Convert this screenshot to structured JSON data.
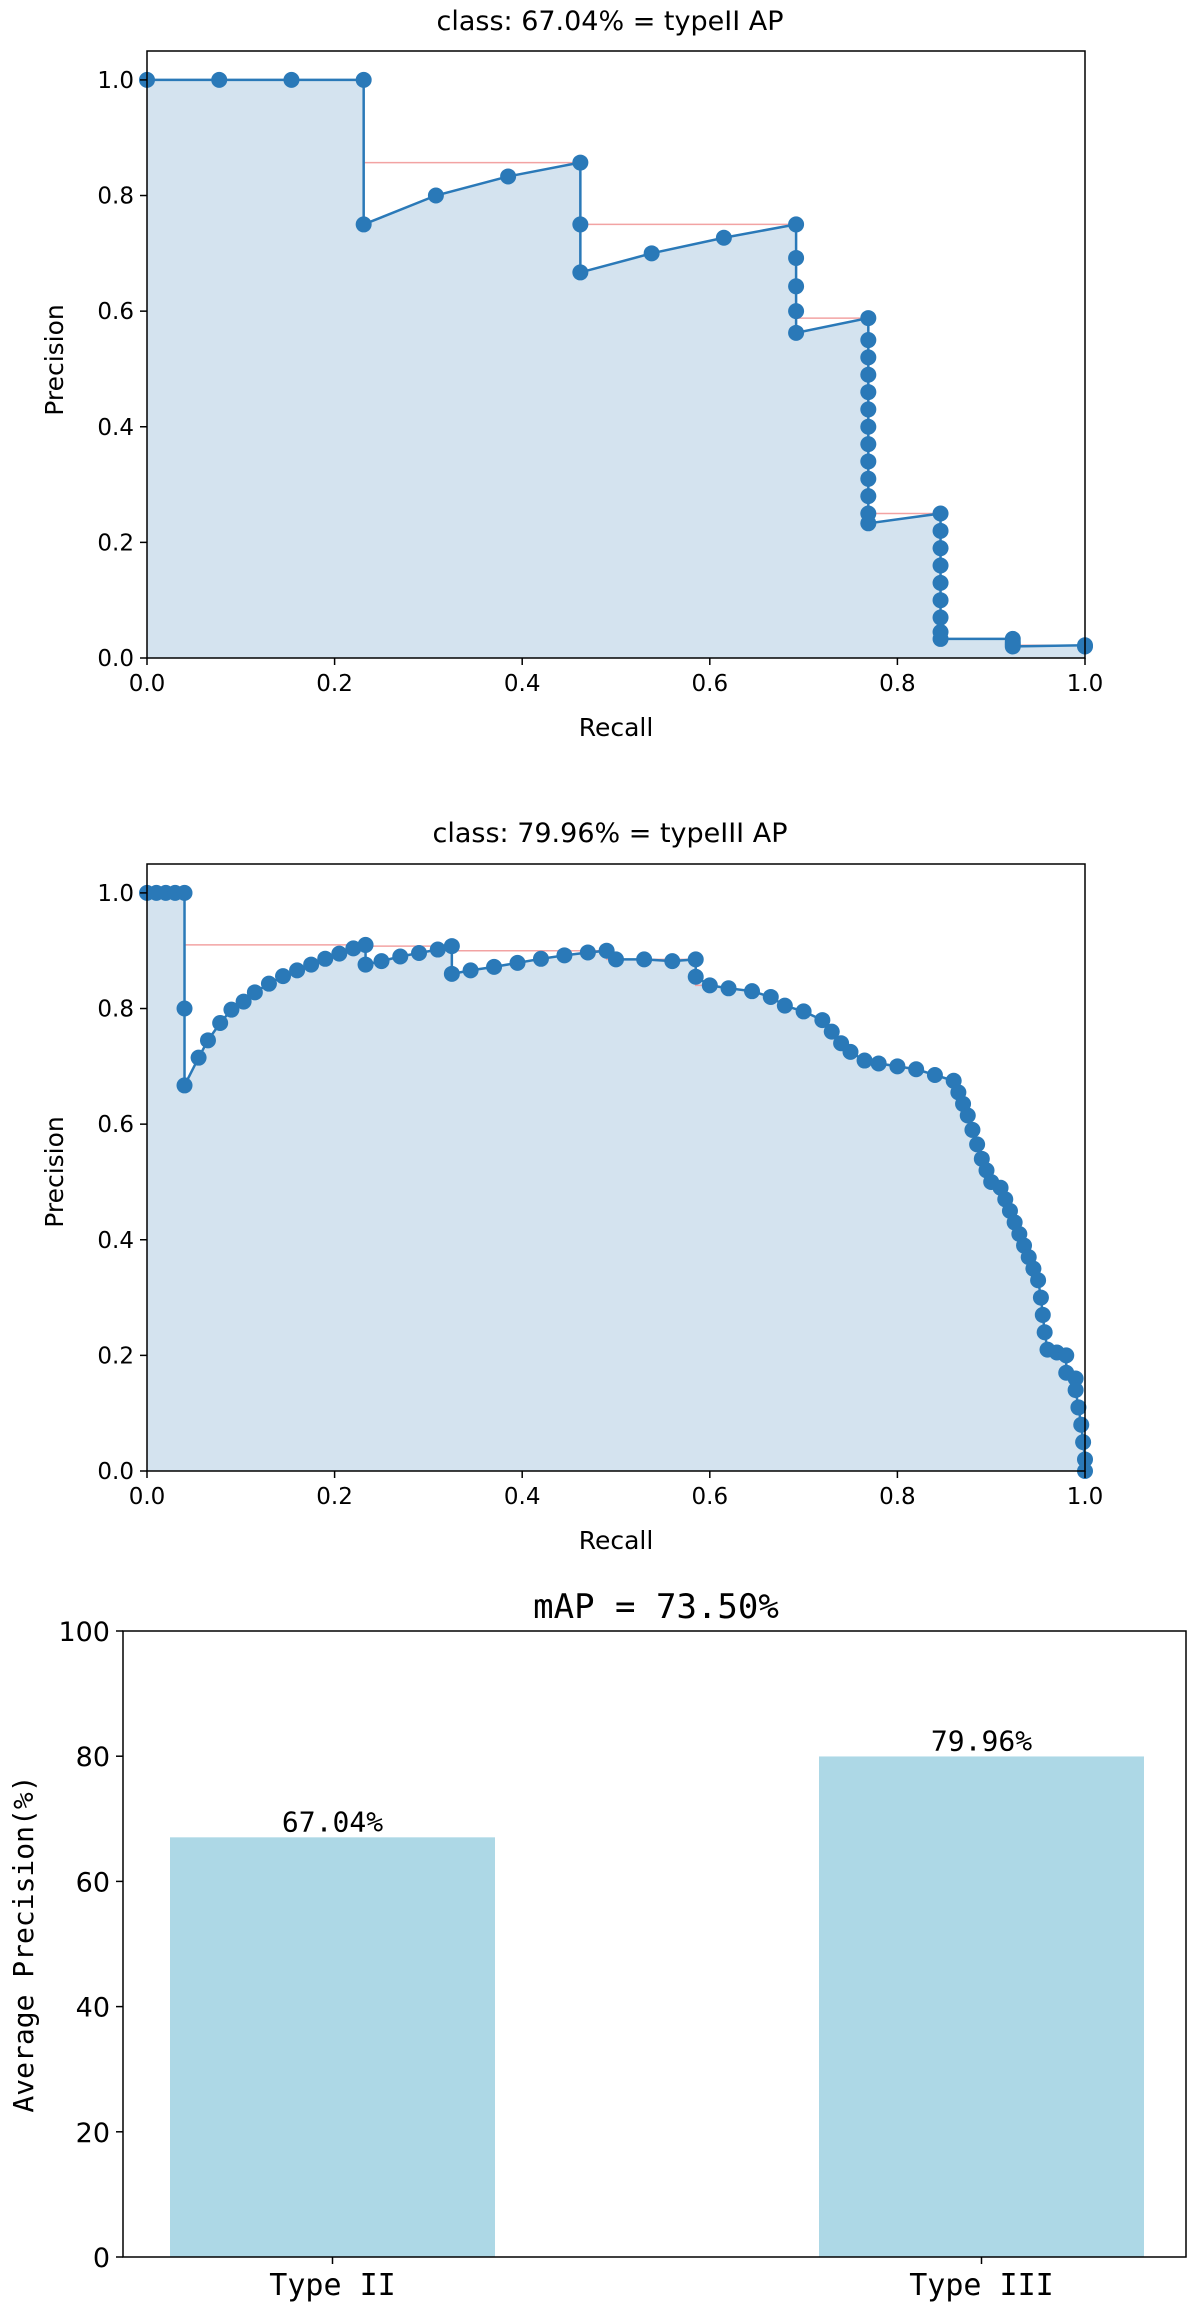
{
  "colors": {
    "line": "#2a79b8",
    "fill": "#d4e3ef",
    "interp": "#f2a3a3",
    "bar": "#add8e6"
  },
  "chart_data": [
    {
      "type": "line",
      "title": "class: 67.04% = typeII AP",
      "xlabel": "Recall",
      "ylabel": "Precision",
      "xlim": [
        0,
        1
      ],
      "ylim": [
        0,
        1.05
      ],
      "xticks": [
        "0.0",
        "0.2",
        "0.4",
        "0.6",
        "0.8",
        "1.0"
      ],
      "yticks": [
        "0.0",
        "0.2",
        "0.4",
        "0.6",
        "0.8",
        "1.0"
      ],
      "curve": [
        [
          0,
          1.0
        ],
        [
          0.077,
          1.0
        ],
        [
          0.154,
          1.0
        ],
        [
          0.231,
          1.0
        ],
        [
          0.231,
          0.75
        ],
        [
          0.308,
          0.8
        ],
        [
          0.385,
          0.833
        ],
        [
          0.462,
          0.857
        ],
        [
          0.462,
          0.75
        ],
        [
          0.462,
          0.667
        ],
        [
          0.538,
          0.7
        ],
        [
          0.615,
          0.727
        ],
        [
          0.692,
          0.75
        ],
        [
          0.692,
          0.692
        ],
        [
          0.692,
          0.643
        ],
        [
          0.692,
          0.6
        ],
        [
          0.692,
          0.5625
        ],
        [
          0.769,
          0.588
        ],
        [
          0.769,
          0.55
        ],
        [
          0.769,
          0.52
        ],
        [
          0.769,
          0.49
        ],
        [
          0.769,
          0.46
        ],
        [
          0.769,
          0.43
        ],
        [
          0.769,
          0.4
        ],
        [
          0.769,
          0.37
        ],
        [
          0.769,
          0.34
        ],
        [
          0.769,
          0.31
        ],
        [
          0.769,
          0.28
        ],
        [
          0.769,
          0.25
        ],
        [
          0.769,
          0.233
        ],
        [
          0.846,
          0.25
        ],
        [
          0.846,
          0.22
        ],
        [
          0.846,
          0.19
        ],
        [
          0.846,
          0.16
        ],
        [
          0.846,
          0.13
        ],
        [
          0.846,
          0.1
        ],
        [
          0.846,
          0.07
        ],
        [
          0.846,
          0.045
        ],
        [
          0.846,
          0.033
        ],
        [
          0.923,
          0.033
        ],
        [
          0.923,
          0.028
        ],
        [
          0.923,
          0.024
        ],
        [
          0.923,
          0.02
        ],
        [
          1.0,
          0.022
        ],
        [
          1.0,
          0.02
        ]
      ],
      "interpolated": [
        [
          0,
          1.0
        ],
        [
          0.231,
          1.0
        ],
        [
          0.231,
          0.857
        ],
        [
          0.462,
          0.857
        ],
        [
          0.462,
          0.75
        ],
        [
          0.692,
          0.75
        ],
        [
          0.692,
          0.588
        ],
        [
          0.769,
          0.588
        ],
        [
          0.769,
          0.25
        ],
        [
          0.846,
          0.25
        ],
        [
          0.846,
          0.033
        ],
        [
          0.923,
          0.033
        ],
        [
          0.923,
          0.022
        ],
        [
          1.0,
          0.022
        ]
      ]
    },
    {
      "type": "line",
      "title": "class: 79.96% = typeIII AP",
      "xlabel": "Recall",
      "ylabel": "Precision",
      "xlim": [
        0,
        1
      ],
      "ylim": [
        0,
        1.05
      ],
      "xticks": [
        "0.0",
        "0.2",
        "0.4",
        "0.6",
        "0.8",
        "1.0"
      ],
      "yticks": [
        "0.0",
        "0.2",
        "0.4",
        "0.6",
        "0.8",
        "1.0"
      ],
      "curve": [
        [
          0,
          1.0
        ],
        [
          0.01,
          1.0
        ],
        [
          0.02,
          1.0
        ],
        [
          0.03,
          1.0
        ],
        [
          0.04,
          1.0
        ],
        [
          0.04,
          0.8
        ],
        [
          0.04,
          0.667
        ],
        [
          0.055,
          0.715
        ],
        [
          0.065,
          0.745
        ],
        [
          0.078,
          0.775
        ],
        [
          0.09,
          0.798
        ],
        [
          0.103,
          0.812
        ],
        [
          0.115,
          0.828
        ],
        [
          0.13,
          0.843
        ],
        [
          0.145,
          0.856
        ],
        [
          0.16,
          0.866
        ],
        [
          0.175,
          0.876
        ],
        [
          0.19,
          0.886
        ],
        [
          0.205,
          0.895
        ],
        [
          0.22,
          0.904
        ],
        [
          0.233,
          0.91
        ],
        [
          0.233,
          0.876
        ],
        [
          0.25,
          0.882
        ],
        [
          0.27,
          0.89
        ],
        [
          0.29,
          0.896
        ],
        [
          0.31,
          0.902
        ],
        [
          0.325,
          0.908
        ],
        [
          0.325,
          0.86
        ],
        [
          0.345,
          0.866
        ],
        [
          0.37,
          0.872
        ],
        [
          0.395,
          0.879
        ],
        [
          0.42,
          0.886
        ],
        [
          0.445,
          0.892
        ],
        [
          0.47,
          0.897
        ],
        [
          0.49,
          0.9
        ],
        [
          0.5,
          0.885
        ],
        [
          0.53,
          0.885
        ],
        [
          0.56,
          0.882
        ],
        [
          0.585,
          0.885
        ],
        [
          0.585,
          0.855
        ],
        [
          0.6,
          0.84
        ],
        [
          0.62,
          0.835
        ],
        [
          0.645,
          0.83
        ],
        [
          0.665,
          0.82
        ],
        [
          0.68,
          0.805
        ],
        [
          0.7,
          0.795
        ],
        [
          0.72,
          0.78
        ],
        [
          0.73,
          0.76
        ],
        [
          0.74,
          0.74
        ],
        [
          0.75,
          0.725
        ],
        [
          0.765,
          0.71
        ],
        [
          0.78,
          0.705
        ],
        [
          0.8,
          0.7
        ],
        [
          0.82,
          0.695
        ],
        [
          0.84,
          0.685
        ],
        [
          0.86,
          0.675
        ],
        [
          0.865,
          0.655
        ],
        [
          0.87,
          0.635
        ],
        [
          0.875,
          0.615
        ],
        [
          0.88,
          0.59
        ],
        [
          0.885,
          0.565
        ],
        [
          0.89,
          0.54
        ],
        [
          0.895,
          0.52
        ],
        [
          0.9,
          0.5
        ],
        [
          0.91,
          0.49
        ],
        [
          0.915,
          0.47
        ],
        [
          0.92,
          0.45
        ],
        [
          0.925,
          0.43
        ],
        [
          0.93,
          0.41
        ],
        [
          0.935,
          0.39
        ],
        [
          0.94,
          0.37
        ],
        [
          0.945,
          0.35
        ],
        [
          0.95,
          0.33
        ],
        [
          0.953,
          0.3
        ],
        [
          0.955,
          0.27
        ],
        [
          0.957,
          0.24
        ],
        [
          0.96,
          0.21
        ],
        [
          0.97,
          0.205
        ],
        [
          0.98,
          0.2
        ],
        [
          0.98,
          0.17
        ],
        [
          0.99,
          0.16
        ],
        [
          0.99,
          0.14
        ],
        [
          0.993,
          0.11
        ],
        [
          0.996,
          0.08
        ],
        [
          0.998,
          0.05
        ],
        [
          1.0,
          0.02
        ],
        [
          1.0,
          0.0
        ]
      ],
      "interpolated": [
        [
          0,
          1.0
        ],
        [
          0.04,
          1.0
        ],
        [
          0.04,
          0.91
        ],
        [
          0.233,
          0.91
        ],
        [
          0.233,
          0.908
        ],
        [
          0.325,
          0.908
        ],
        [
          0.325,
          0.9
        ],
        [
          0.49,
          0.9
        ],
        [
          0.49,
          0.885
        ],
        [
          0.585,
          0.885
        ],
        [
          0.585,
          0.84
        ],
        [
          0.6,
          0.84
        ]
      ]
    },
    {
      "type": "bar",
      "title": "mAP = 73.50%",
      "xlabel": "",
      "ylabel": "Average Precision(%)",
      "ylim": [
        0,
        100
      ],
      "yticks": [
        "0",
        "20",
        "40",
        "60",
        "80",
        "100"
      ],
      "categories": [
        "Type II",
        "Type III"
      ],
      "values": [
        67.04,
        79.96
      ],
      "value_labels": [
        "67.04%",
        "79.96%"
      ]
    }
  ]
}
